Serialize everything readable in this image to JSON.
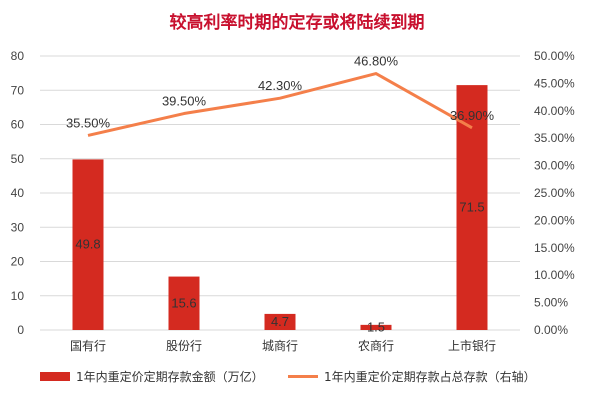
{
  "chart_data": {
    "type": "bar",
    "title": "较高利率时期的定存或将陆续到期",
    "colors": {
      "title": "#c8102e",
      "bar": "#d42a20",
      "line": "#f47f4a",
      "grid": "#d9d9d9"
    },
    "categories": [
      "国有行",
      "股份行",
      "城商行",
      "农商行",
      "上市银行"
    ],
    "y_left": {
      "min": 0,
      "max": 80,
      "ticks": [
        "0",
        "10",
        "20",
        "30",
        "40",
        "50",
        "60",
        "70",
        "80"
      ]
    },
    "y_right": {
      "min": 0,
      "max": 0.5,
      "ticks": [
        "0.00%",
        "5.00%",
        "10.00%",
        "15.00%",
        "20.00%",
        "25.00%",
        "30.00%",
        "35.00%",
        "40.00%",
        "45.00%",
        "50.00%"
      ]
    },
    "series": [
      {
        "name": "1年内重定价定期存款金额（万亿）",
        "type": "bar",
        "axis": "left",
        "values": [
          49.8,
          15.6,
          4.7,
          1.5,
          71.5
        ],
        "labels": [
          "49.8",
          "15.6",
          "4.7",
          "1.5",
          "71.5"
        ]
      },
      {
        "name": "1年内重定价定期存款占总存款（右轴）",
        "type": "line",
        "axis": "right",
        "values": [
          0.355,
          0.395,
          0.423,
          0.468,
          0.369
        ],
        "labels": [
          "35.50%",
          "39.50%",
          "42.30%",
          "46.80%",
          "36.90%"
        ]
      }
    ],
    "grid": true,
    "legend": "bottom"
  }
}
